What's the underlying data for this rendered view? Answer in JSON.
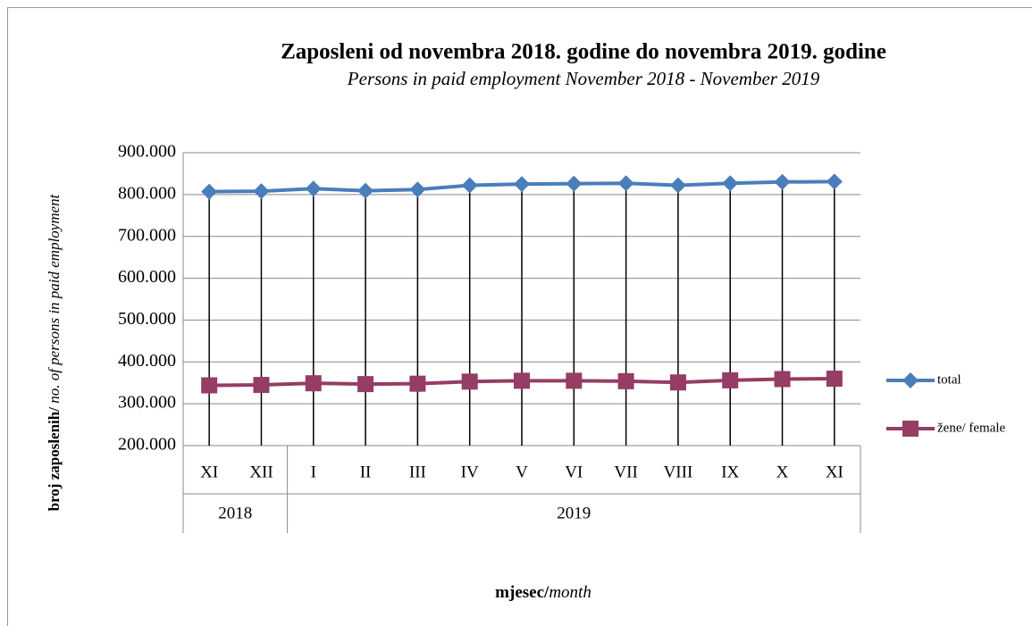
{
  "chart_data": {
    "type": "line",
    "title": "Zaposleni od novembra 2018. godine do novembra  2019. godine",
    "subtitle": "Persons in paid employment November 2018 - November 2019",
    "y_label": {
      "bold": "broj zaposlenih/",
      "italic": " no. of persons  in paid employment"
    },
    "x_label": {
      "bold": "mjesec/",
      "italic": "month"
    },
    "categories": [
      "XI",
      "XII",
      "I",
      "II",
      "III",
      "IV",
      "V",
      "VI",
      "VII",
      "VIII",
      "IX",
      "X",
      "XI"
    ],
    "groups": [
      {
        "label": "2018",
        "span": 2
      },
      {
        "label": "2019",
        "span": 11
      }
    ],
    "series": [
      {
        "name": "total",
        "color": "#4a7ebb",
        "marker": "diamond",
        "values": [
          807000,
          808000,
          814000,
          809000,
          812000,
          822000,
          825000,
          826000,
          827000,
          822000,
          827000,
          830000,
          831000
        ]
      },
      {
        "name": "žene/ female",
        "color": "#953d64",
        "marker": "square",
        "values": [
          344000,
          345000,
          349000,
          347000,
          348000,
          353000,
          355000,
          355000,
          354000,
          351000,
          356000,
          359000,
          360000
        ]
      }
    ],
    "ylim": [
      200000,
      900000
    ],
    "yticks": [
      {
        "value": 200000,
        "label": "200.000"
      },
      {
        "value": 300000,
        "label": "300.000"
      },
      {
        "value": 400000,
        "label": "400.000"
      },
      {
        "value": 500000,
        "label": "500.000"
      },
      {
        "value": 600000,
        "label": "600.000"
      },
      {
        "value": 700000,
        "label": "700.000"
      },
      {
        "value": 800000,
        "label": "800.000"
      },
      {
        "value": 900000,
        "label": "900.000"
      }
    ],
    "grid": true,
    "drop_lines": true,
    "legend": "right"
  }
}
